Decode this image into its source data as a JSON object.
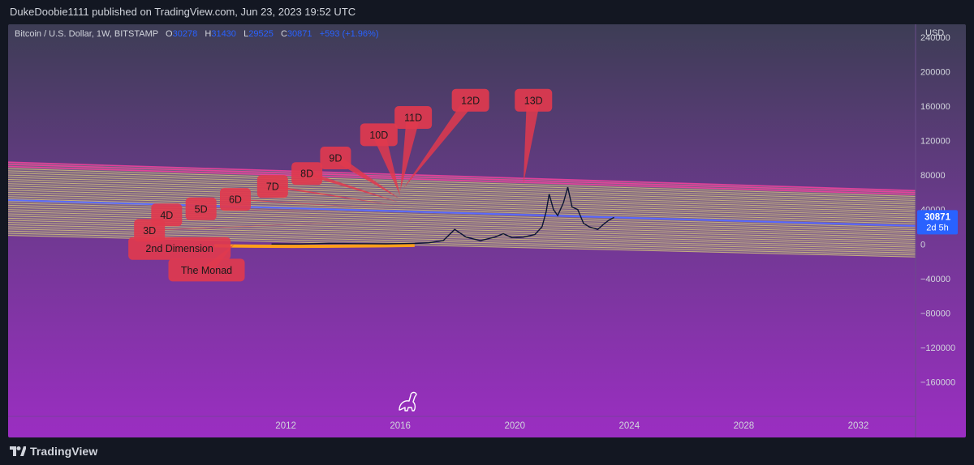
{
  "header": {
    "published_text": "DukeDoobie1111 published on TradingView.com, Jun 23, 2023 19:52 UTC"
  },
  "footer": {
    "brand": "TradingView"
  },
  "legend": {
    "symbol": "Bitcoin / U.S. Dollar, 1W, BITSTAMP",
    "o_label": "O",
    "o_value": "30278",
    "h_label": "H",
    "h_value": "31430",
    "l_label": "L",
    "l_value": "29525",
    "c_label": "C",
    "c_value": "30871",
    "change": "+593 (+1.96%)"
  },
  "price_tag": {
    "value": "30871",
    "countdown": "2d 5h",
    "color": "#2962ff"
  },
  "colors": {
    "bg_top": "#3d3d55",
    "bg_mid": "#6b3a8c",
    "bg_bottom": "#9b2ec2",
    "label_fill": "#e0394e",
    "band_stripe": "#d8c87a",
    "band_edge": "#ff3fa0",
    "midline": "#5a6bff",
    "price_line": "#0b1533",
    "base_curve": "#ff9e1b"
  },
  "chart_data": {
    "type": "line",
    "currency_label": "USD",
    "y_ticks": [
      240000,
      200000,
      160000,
      120000,
      80000,
      40000,
      0,
      -40000,
      -80000,
      -120000,
      -160000
    ],
    "y_tick_labels": [
      "240000",
      "200000",
      "160000",
      "120000",
      "80000",
      "40000",
      "0",
      "−40000",
      "−80000",
      "−120000",
      "−160000"
    ],
    "ylim": [
      -200000,
      255000
    ],
    "x_ticks": [
      2012,
      2016,
      2020,
      2024,
      2028,
      2032
    ],
    "x_tick_labels": [
      "2012",
      "2016",
      "2020",
      "2024",
      "2028",
      "2032"
    ],
    "xlim": [
      2002.3,
      2034.0
    ],
    "series": [
      {
        "x": [
          2011.5,
          2012.5,
          2013.5,
          2014.5,
          2015.5,
          2016.5,
          2017.0,
          2017.5,
          2017.9,
          2018.3,
          2018.8,
          2019.3,
          2019.6,
          2019.9,
          2020.3,
          2020.7,
          2020.95,
          2021.1,
          2021.2,
          2021.35,
          2021.5,
          2021.7,
          2021.85,
          2022.0,
          2022.2,
          2022.4,
          2022.6,
          2022.9,
          2023.1,
          2023.3,
          2023.47
        ],
        "values": [
          10,
          13,
          800,
          400,
          250,
          700,
          1500,
          4000,
          17000,
          8000,
          4000,
          8000,
          12000,
          7500,
          8000,
          11000,
          20000,
          38000,
          58000,
          40000,
          33000,
          48000,
          66000,
          43000,
          40000,
          24000,
          20000,
          17000,
          23000,
          28000,
          30871
        ]
      }
    ],
    "channel": {
      "upper_start": [
        2002.3,
        95000
      ],
      "upper_end": [
        2034.0,
        62000
      ],
      "lower_start": [
        2002.3,
        10000
      ],
      "lower_end": [
        2034.0,
        -15000
      ],
      "midline_start": [
        2002.3,
        51000
      ],
      "midline_end": [
        2034.0,
        21000
      ]
    },
    "annotations": [
      {
        "text": "The Monad",
        "x": 2007.9,
        "y": -17000,
        "target_x": 2010.2,
        "target_y": 0
      },
      {
        "text": "2nd Dimension",
        "x": 2006.5,
        "y": 8000,
        "target_x": 2009.8,
        "target_y": -3000
      },
      {
        "text": "3D",
        "x": 2006.7,
        "y": 29000,
        "target_x": 2016.0,
        "target_y": 28000
      },
      {
        "text": "4D",
        "x": 2007.3,
        "y": 47000,
        "target_x": 2016.0,
        "target_y": 32000
      },
      {
        "text": "5D",
        "x": 2008.5,
        "y": 54000,
        "target_x": 2016.0,
        "target_y": 36000
      },
      {
        "text": "6D",
        "x": 2009.7,
        "y": 65000,
        "target_x": 2016.0,
        "target_y": 40000
      },
      {
        "text": "7D",
        "x": 2011.0,
        "y": 80000,
        "target_x": 2016.0,
        "target_y": 44000
      },
      {
        "text": "8D",
        "x": 2012.2,
        "y": 95000,
        "target_x": 2016.0,
        "target_y": 48000
      },
      {
        "text": "9D",
        "x": 2013.2,
        "y": 113000,
        "target_x": 2016.0,
        "target_y": 52000
      },
      {
        "text": "10D",
        "x": 2014.6,
        "y": 140000,
        "target_x": 2016.0,
        "target_y": 56000
      },
      {
        "text": "11D",
        "x": 2015.8,
        "y": 160000,
        "target_x": 2016.0,
        "target_y": 62000
      },
      {
        "text": "12D",
        "x": 2017.8,
        "y": 180000,
        "target_x": 2016.1,
        "target_y": 64000
      },
      {
        "text": "13D",
        "x": 2020.0,
        "y": 180000,
        "target_x": 2020.3,
        "target_y": 70000
      }
    ]
  }
}
